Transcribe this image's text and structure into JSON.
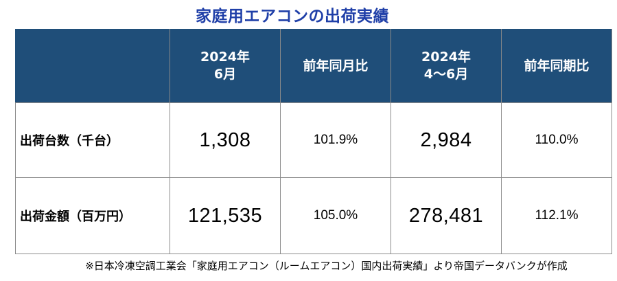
{
  "title": "家庭用エアコンの出荷実績",
  "table": {
    "headers": {
      "corner": "",
      "col1_line1": "2024年",
      "col1_line2": "6月",
      "col2": "前年同月比",
      "col3_line1": "2024年",
      "col3_line2": "4～6月",
      "col4": "前年同期比"
    },
    "rows": [
      {
        "label": "出荷台数（千台）",
        "month_value": "1,308",
        "month_ratio": "101.9%",
        "period_value": "2,984",
        "period_ratio": "110.0%"
      },
      {
        "label": "出荷金額（百万円）",
        "month_value": "121,535",
        "month_ratio": "105.0%",
        "period_value": "278,481",
        "period_ratio": "112.1%"
      }
    ]
  },
  "source_note": "※日本冷凍空調工業会「家庭用エアコン（ルームエアコン）国内出荷実績」より帝国データバンクが作成",
  "colors": {
    "title": "#1f3fa8",
    "header_bg": "#1f4e79",
    "header_text": "#ffffff",
    "border": "#8a8a8a"
  }
}
